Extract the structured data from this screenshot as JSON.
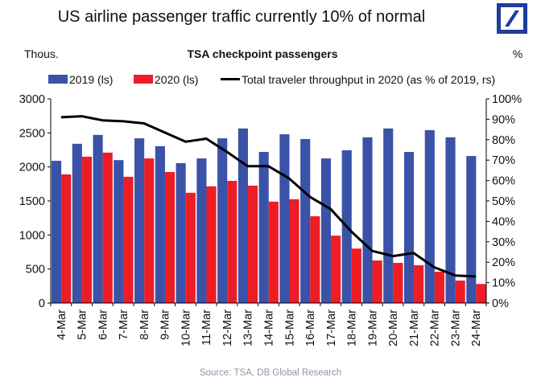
{
  "header": {
    "title": "US airline passenger traffic currently 10% of normal",
    "logo": "deutsche-bank-logo"
  },
  "footer": {
    "source": "Source:  TSA, DB Global Research"
  },
  "colors": {
    "series_2019": "#3a52a8",
    "series_2020": "#ee1c25",
    "line": "#000000",
    "logo": "#1f3c9e"
  },
  "chart_data": {
    "type": "bar",
    "title": "TSA checkpoint passengers",
    "left_axis_unit": "Thous.",
    "right_axis_unit": "%",
    "categories": [
      "4-Mar",
      "5-Mar",
      "6-Mar",
      "7-Mar",
      "8-Mar",
      "9-Mar",
      "10-Mar",
      "11-Mar",
      "12-Mar",
      "13-Mar",
      "14-Mar",
      "15-Mar",
      "16-Mar",
      "17-Mar",
      "18-Mar",
      "19-Mar",
      "20-Mar",
      "21-Mar",
      "22-Mar",
      "23-Mar",
      "24-Mar"
    ],
    "series": [
      {
        "name": "2019 (ls)",
        "type": "bar",
        "axis": "left",
        "values": [
          2090,
          2340,
          2470,
          2100,
          2420,
          2305,
          2055,
          2125,
          2420,
          2565,
          2220,
          2480,
          2410,
          2125,
          2245,
          2435,
          2565,
          2220,
          2540,
          2435,
          2160
        ]
      },
      {
        "name": "2020 (ls)",
        "type": "bar",
        "axis": "left",
        "values": [
          1890,
          2150,
          2210,
          1855,
          2125,
          1925,
          1620,
          1715,
          1795,
          1725,
          1490,
          1525,
          1275,
          990,
          800,
          625,
          590,
          555,
          460,
          330,
          280
        ]
      },
      {
        "name": "Total traveler throughput in 2020 (as % of 2019, rs)",
        "type": "line",
        "axis": "right",
        "values": [
          91,
          91.5,
          89.5,
          89,
          88,
          83.5,
          79,
          80.5,
          74,
          67,
          67,
          61,
          52,
          46,
          35,
          25.5,
          23,
          24.5,
          17.5,
          13.5,
          13
        ]
      }
    ],
    "left_axis": {
      "min": 0,
      "max": 3000,
      "ticks": [
        "0",
        "500",
        "1000",
        "1500",
        "2000",
        "2500",
        "3000"
      ]
    },
    "right_axis": {
      "min": 0,
      "max": 100,
      "ticks": [
        "0%",
        "10%",
        "20%",
        "30%",
        "40%",
        "50%",
        "60%",
        "70%",
        "80%",
        "90%",
        "100%"
      ]
    },
    "legend": [
      "2019 (ls)",
      "2020 (ls)",
      "Total traveler throughput in 2020 (as % of 2019, rs)"
    ],
    "legend_position": "top",
    "grid": false,
    "xlabel": "",
    "ylabel": ""
  }
}
